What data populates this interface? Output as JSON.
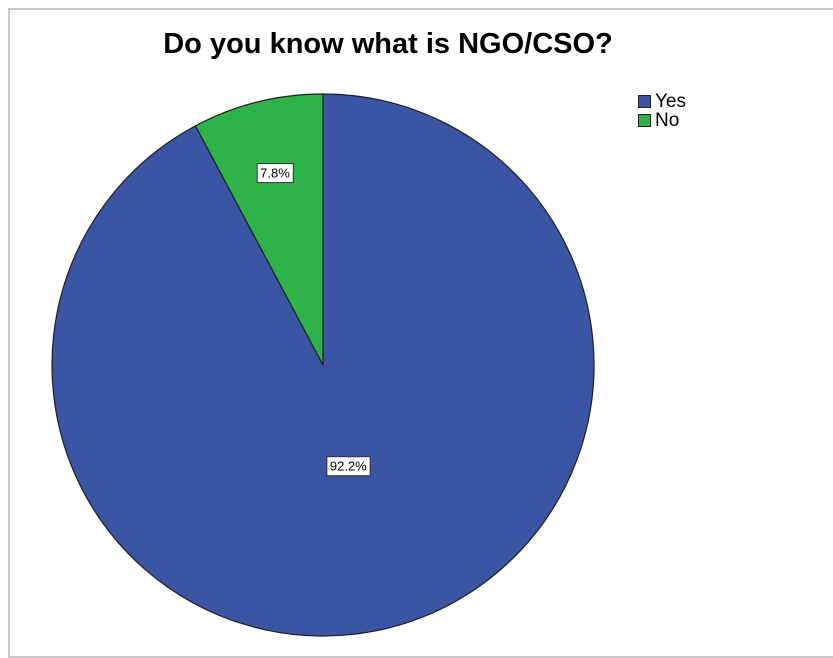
{
  "chart_data": {
    "type": "pie",
    "title": "Do you know what is NGO/CSO?",
    "categories": [
      "Yes",
      "No"
    ],
    "values": [
      92.2,
      7.8
    ],
    "value_labels": [
      "92.2%",
      "7.8%"
    ],
    "colors": [
      "#3a55a4",
      "#2db34a"
    ],
    "legend_position": "top-right",
    "start_angle": "12 o'clock",
    "direction": "clockwise"
  }
}
